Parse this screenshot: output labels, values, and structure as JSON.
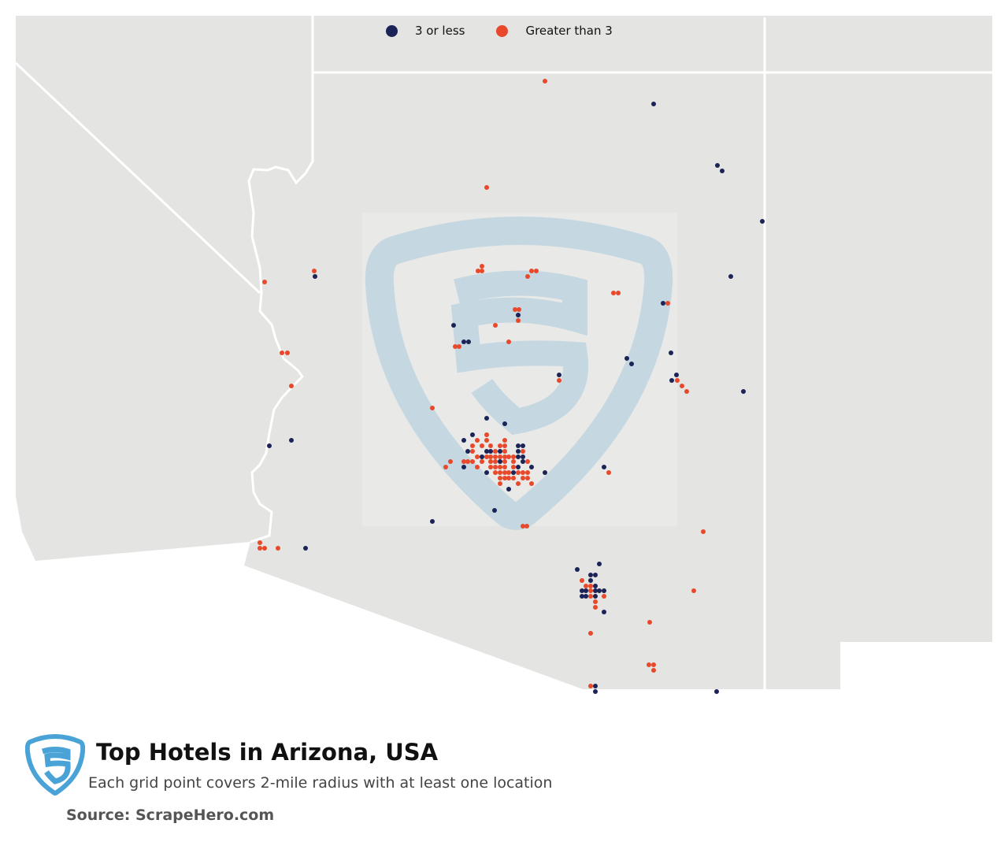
{
  "title": "Top Hotels in Arizona, USA",
  "subtitle": "Each grid point covers 2-mile radius with at least one location",
  "source": "Source: ScrapeHero.com",
  "legend": [
    {
      "label": "3 or less",
      "color": "#1b2357"
    },
    {
      "label": "Greater than 3",
      "color": "#e8492b"
    }
  ],
  "colors": {
    "land": "#e4e4e2",
    "border": "#ffffff",
    "watermark": "#c5d8e2",
    "logo": "#4aa3d6",
    "low": "#1b2357",
    "high": "#e8492b"
  },
  "icons": {
    "logo": "scrapehero-shield-logo-icon",
    "watermark": "scrapehero-watermark-icon"
  }
}
